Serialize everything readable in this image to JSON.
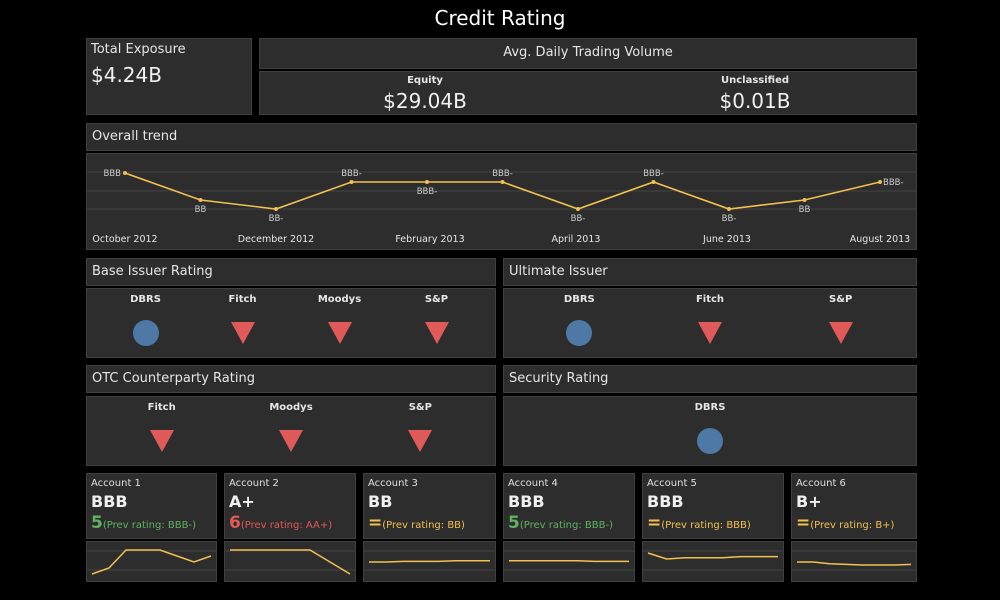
{
  "header": {
    "title": "Credit Rating"
  },
  "colors": {
    "accent": "#f2c14e",
    "good": "#5fb35f",
    "bad": "#e05a5a",
    "neutral": "#f2c14e",
    "circle": "#4e79a7",
    "triangle": "#e05a5a"
  },
  "total_exposure": {
    "label": "Total Exposure",
    "value": "$4.24B"
  },
  "adtv": {
    "title": "Avg. Daily Trading Volume",
    "equity_label": "Equity",
    "equity_value": "$29.04B",
    "unclassified_label": "Unclassified",
    "unclassified_value": "$0.01B"
  },
  "trend": {
    "title": "Overall trend",
    "x_labels": [
      "October 2012",
      "December 2012",
      "February 2013",
      "April 2013",
      "June 2013",
      "August 2013"
    ]
  },
  "chart_data": {
    "type": "line",
    "title": "Overall trend",
    "x": [
      "2012-10",
      "2012-11",
      "2012-12",
      "2013-01",
      "2013-02",
      "2013-03",
      "2013-04",
      "2013-05",
      "2013-06",
      "2013-07",
      "2013-08"
    ],
    "y_levels": [
      "BB-",
      "BB",
      "BBB-",
      "BBB"
    ],
    "values": [
      "BBB",
      "BB",
      "BB-",
      "BBB-",
      "BBB-",
      "BBB-",
      "BB-",
      "BBB-",
      "BB-",
      "BB",
      "BBB-"
    ],
    "data_labels": [
      "BBB",
      "BB",
      "BB-",
      "BBB-",
      "BBB-",
      "BBB-",
      "BB-",
      "BBB-",
      "BB-",
      "BB",
      "BBB-"
    ]
  },
  "base_issuer": {
    "title": "Base Issuer Rating",
    "items": [
      {
        "label": "DBRS",
        "icon": "circle-icon"
      },
      {
        "label": "Fitch",
        "icon": "down-triangle-icon"
      },
      {
        "label": "Moodys",
        "icon": "down-triangle-icon"
      },
      {
        "label": "S&P",
        "icon": "down-triangle-icon"
      }
    ]
  },
  "ultimate_issuer": {
    "title": "Ultimate Issuer",
    "items": [
      {
        "label": "DBRS",
        "icon": "circle-icon"
      },
      {
        "label": "Fitch",
        "icon": "down-triangle-icon"
      },
      {
        "label": "S&P",
        "icon": "down-triangle-icon"
      }
    ]
  },
  "otc": {
    "title": "OTC Counterparty Rating",
    "items": [
      {
        "label": "Fitch",
        "icon": "down-triangle-icon"
      },
      {
        "label": "Moodys",
        "icon": "down-triangle-icon"
      },
      {
        "label": "S&P",
        "icon": "down-triangle-icon"
      }
    ]
  },
  "security": {
    "title": "Security Rating",
    "items": [
      {
        "label": "DBRS",
        "icon": "circle-icon"
      }
    ]
  },
  "accounts": [
    {
      "label": "Account 1",
      "rating": "BBB",
      "change": "5",
      "change_type": "up",
      "prev": "(Prev rating: BBB-)",
      "spark": [
        1,
        2,
        5,
        5,
        5,
        4,
        3,
        4
      ]
    },
    {
      "label": "Account 2",
      "rating": "A+",
      "change": "6",
      "change_type": "down",
      "prev": "(Prev rating: AA+)",
      "spark": [
        5,
        5,
        5,
        5,
        5,
        3,
        1
      ]
    },
    {
      "label": "Account 3",
      "rating": "BB",
      "change": "=",
      "change_type": "same",
      "prev": "(Prev rating: BB)",
      "spark": [
        3,
        3,
        3.1,
        3.1,
        3.1,
        3.2,
        3.2,
        3.2
      ]
    },
    {
      "label": "Account 4",
      "rating": "BBB",
      "change": "5",
      "change_type": "up",
      "prev": "(Prev rating: BBB-)",
      "spark": [
        3.2,
        3.2,
        3.2,
        3.2,
        3.2,
        3.1,
        3.1,
        3.1
      ]
    },
    {
      "label": "Account 5",
      "rating": "BBB",
      "change": "=",
      "change_type": "same",
      "prev": "(Prev rating: BBB)",
      "spark": [
        4.5,
        3.5,
        3.7,
        3.7,
        3.7,
        3.9,
        3.9,
        3.9
      ]
    },
    {
      "label": "Account 6",
      "rating": "B+",
      "change": "=",
      "change_type": "same",
      "prev": "(Prev rating: B+)",
      "spark": [
        3,
        3,
        2.7,
        2.6,
        2.5,
        2.5,
        2.5,
        2.6
      ]
    }
  ]
}
